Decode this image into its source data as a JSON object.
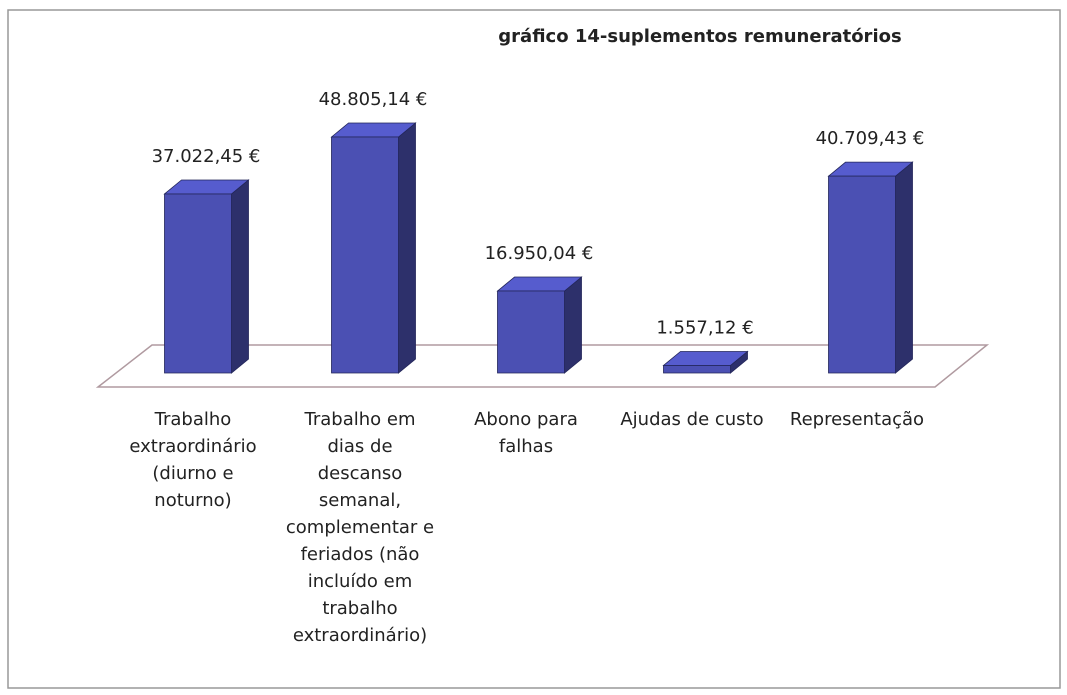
{
  "chart_data": {
    "type": "bar3d",
    "title": "gráfico 14-suplementos remuneratórios",
    "categories": [
      "Trabalho extraordinário (diurno e noturno)",
      "Trabalho em dias de descanso semanal, complementar e feriados (não incluído em trabalho extraordinário)",
      "Abono para falhas",
      "Ajudas de custo",
      "Representação"
    ],
    "values": [
      37022.45,
      48805.14,
      16950.04,
      1557.12,
      40709.43
    ],
    "value_labels": [
      "37.022,45 €",
      "48.805,14 €",
      "16.950,04 €",
      "1.557,12 €",
      "40.709,43 €"
    ],
    "color": "#4b50b3"
  }
}
